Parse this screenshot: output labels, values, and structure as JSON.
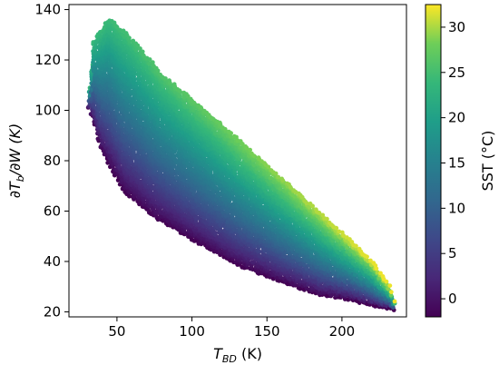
{
  "chart_data": {
    "type": "scatter",
    "title": "",
    "xlabel": "T_BD (K)",
    "ylabel": "∂T_b/∂W (K)",
    "xlabel_parts": {
      "main": "T",
      "sub": "BD",
      "rest": " (K)"
    },
    "ylabel_parts": {
      "pre": "∂T",
      "sub": "b",
      "rest": "/∂W (K)"
    },
    "xlim": [
      18,
      243
    ],
    "ylim": [
      18,
      142
    ],
    "xticks": [
      "50",
      "100",
      "150",
      "200"
    ],
    "yticks": [
      "20",
      "40",
      "60",
      "80",
      "100",
      "120",
      "140"
    ],
    "grid": false,
    "colorbar": {
      "label": "SST (°C)",
      "range": [
        -2,
        32.5
      ],
      "ticks": [
        "0",
        "5",
        "10",
        "15",
        "20",
        "25",
        "30"
      ],
      "colormap": "viridis"
    },
    "color_by": "SST (°C)",
    "point_cloud": {
      "description_of_bands": "color bands run diagonally; cold SST at low-left edge, warm SST along upper-right edge",
      "lower_boundary": [
        [
          30,
          104
        ],
        [
          40,
          84
        ],
        [
          55,
          68
        ],
        [
          75,
          58
        ],
        [
          100,
          49
        ],
        [
          130,
          39
        ],
        [
          160,
          32
        ],
        [
          185,
          27
        ],
        [
          205,
          25
        ],
        [
          225,
          22
        ],
        [
          235,
          21
        ]
      ],
      "upper_boundary": [
        [
          30,
          100
        ],
        [
          35,
          128
        ],
        [
          45,
          136
        ],
        [
          60,
          128
        ],
        [
          80,
          114
        ],
        [
          100,
          104
        ],
        [
          120,
          94
        ],
        [
          150,
          78
        ],
        [
          180,
          62
        ],
        [
          200,
          51
        ],
        [
          220,
          40
        ],
        [
          232,
          30
        ],
        [
          236,
          22
        ]
      ],
      "sst_at_lower_edge": -2,
      "sst_at_upper_edge": 32
    }
  }
}
